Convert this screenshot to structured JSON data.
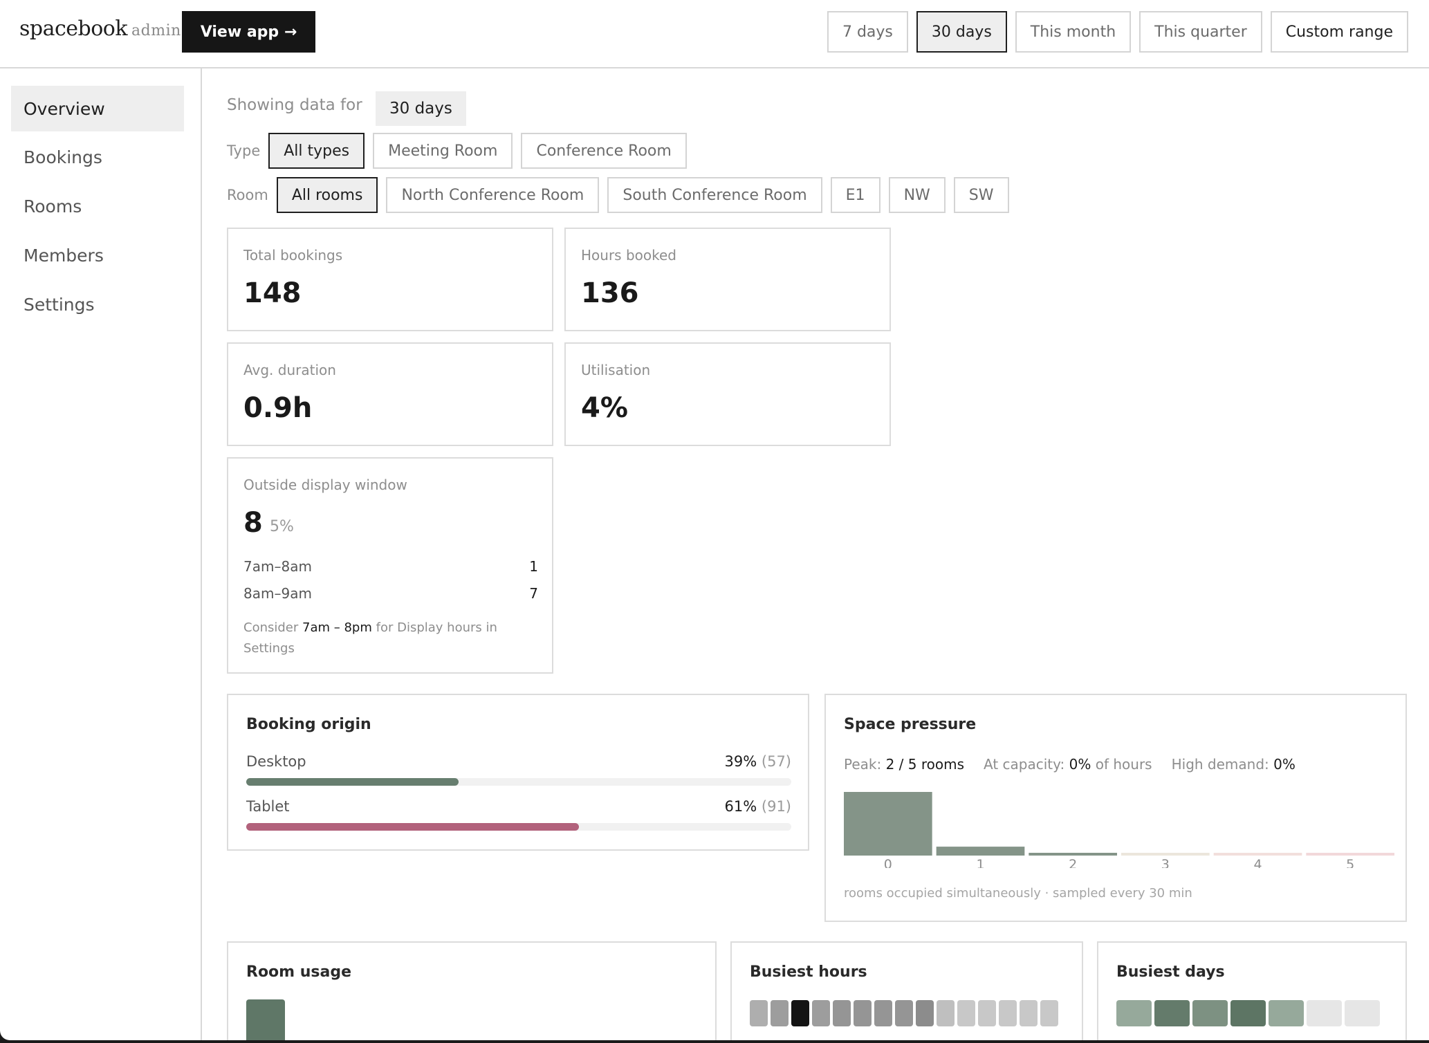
{
  "header": {
    "logo": "spacebook",
    "logo_suffix": "admin",
    "view_app": "View app →",
    "ranges": [
      {
        "label": "7 days",
        "active": false
      },
      {
        "label": "30 days",
        "active": true
      },
      {
        "label": "This month",
        "active": false
      },
      {
        "label": "This quarter",
        "active": false
      },
      {
        "label": "Custom range",
        "active": false
      }
    ]
  },
  "sidebar": {
    "items": [
      {
        "label": "Overview",
        "active": true
      },
      {
        "label": "Bookings",
        "active": false
      },
      {
        "label": "Rooms",
        "active": false
      },
      {
        "label": "Members",
        "active": false
      },
      {
        "label": "Settings",
        "active": false
      }
    ]
  },
  "filters": {
    "showing_label": "Showing data for",
    "showing_value": "30 days",
    "type_label": "Type",
    "types": [
      "All types",
      "Meeting Room",
      "Conference Room"
    ],
    "room_label": "Room",
    "rooms": [
      "All rooms",
      "North Conference Room",
      "South Conference Room",
      "E1",
      "NW",
      "SW"
    ]
  },
  "stats": {
    "total_bookings": {
      "label": "Total bookings",
      "value": "148"
    },
    "hours_booked": {
      "label": "Hours booked",
      "value": "136"
    },
    "avg_duration": {
      "label": "Avg. duration",
      "value": "0.9h"
    },
    "utilisation": {
      "label": "Utilisation",
      "value": "4%"
    }
  },
  "outside_window": {
    "label": "Outside display window",
    "value": "8",
    "percent": "5%",
    "rows": [
      {
        "range": "7am–8am",
        "count": "1"
      },
      {
        "range": "8am–9am",
        "count": "7"
      }
    ],
    "hint_prefix": "Consider",
    "hint_range": "7am – 8pm",
    "hint_suffix": "for Display hours in Settings"
  },
  "booking_origin": {
    "title": "Booking origin",
    "rows": [
      {
        "label": "Desktop",
        "percent": "39%",
        "count": "(57)",
        "fraction": 0.39,
        "color": "#677e6f"
      },
      {
        "label": "Tablet",
        "percent": "61%",
        "count": "(91)",
        "fraction": 0.61,
        "color": "#b2627c"
      }
    ]
  },
  "space_pressure": {
    "title": "Space pressure",
    "peak_label": "Peak:",
    "peak_value": "2 / 5 rooms",
    "capacity_label": "At capacity:",
    "capacity_value": "0%",
    "capacity_suffix": "of hours",
    "demand_label": "High demand:",
    "demand_value": "0%",
    "caption": "rooms occupied simultaneously · sampled every 30 min",
    "chart_data": {
      "type": "bar",
      "categories": [
        "0",
        "1",
        "2",
        "3",
        "4",
        "5"
      ],
      "values": [
        1.0,
        0.14,
        0.04,
        0.0,
        0.0,
        0.0
      ],
      "colors": [
        "#849488",
        "#849488",
        "#849488",
        "#ece6dc",
        "#f2dfdc",
        "#f2d8da"
      ]
    }
  },
  "room_usage": {
    "title": "Room usage"
  },
  "busiest_hours": {
    "title": "Busiest hours",
    "levels": [
      0.3,
      0.4,
      1.0,
      0.4,
      0.45,
      0.45,
      0.45,
      0.45,
      0.5,
      0.2,
      0.15,
      0.15,
      0.15,
      0.15,
      0.15
    ]
  },
  "busiest_days": {
    "title": "Busiest days",
    "levels": [
      0.6,
      0.85,
      0.75,
      0.95,
      0.6,
      0.1,
      0.1
    ],
    "colors": [
      "#96a99b",
      "#647b6b",
      "#7d9182",
      "#5d7564",
      "#96a99b",
      "#e6e6e6",
      "#e6e6e6"
    ]
  }
}
